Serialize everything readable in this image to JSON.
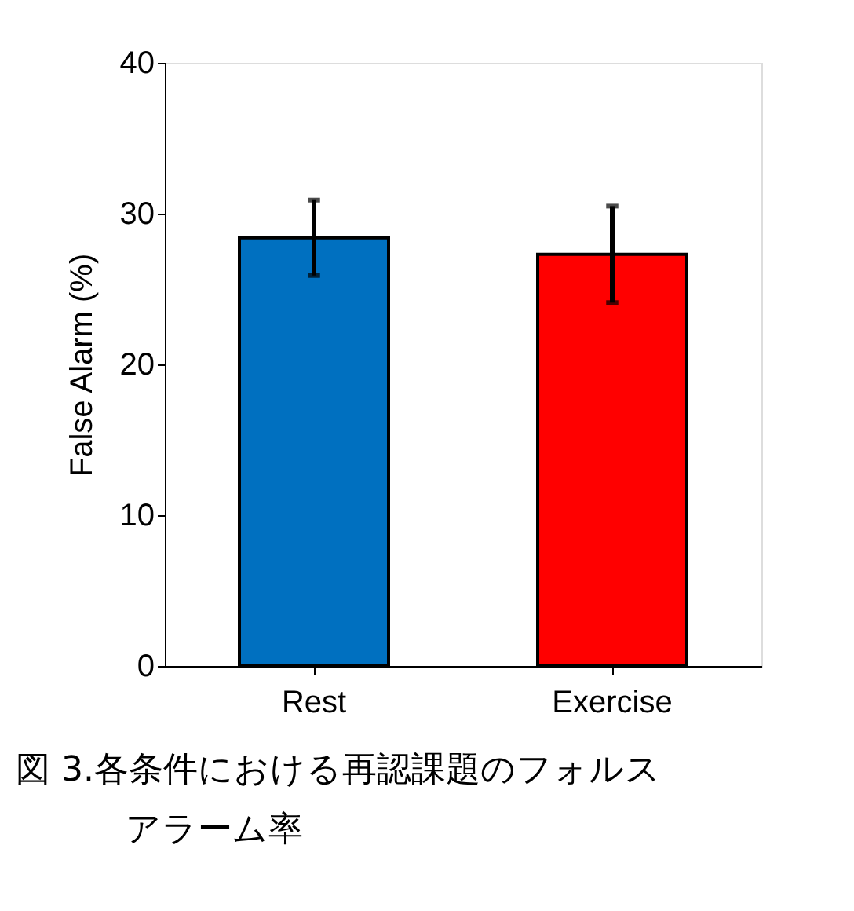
{
  "chart_data": {
    "type": "bar",
    "ylabel": "False Alarm (%)",
    "categories": [
      "Rest",
      "Exercise"
    ],
    "values": [
      28.4,
      27.3
    ],
    "colors": [
      "#0070c0",
      "#ff0000"
    ],
    "errors": [
      2.5,
      3.2
    ],
    "ylim": [
      0,
      40
    ],
    "yticks": [
      0,
      10,
      20,
      30,
      40
    ],
    "grid": false,
    "annotations": [
      "図 3.各条件における再認課題のフォルスアラーム率"
    ]
  }
}
